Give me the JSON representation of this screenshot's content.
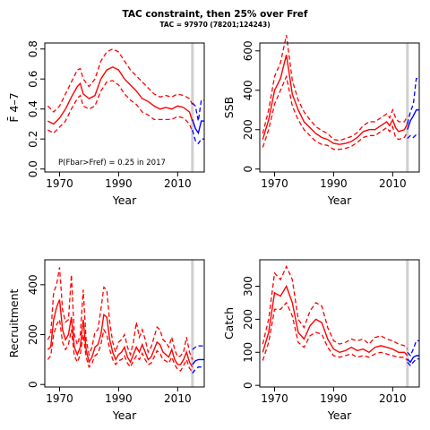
{
  "figure": {
    "title": "TAC constraint, then 25% over Fref",
    "subtitle": "TAC = 97970 (78201;124243)"
  },
  "colors": {
    "historic": "#ff0000",
    "projection": "#0000ff",
    "marker_line": "#d0d0d0",
    "axis": "#000000"
  },
  "chart_data": [
    {
      "type": "line",
      "ylabel": "F̄ 4–7",
      "xlabel": "Year",
      "annotation": "P(Fbar>Fref) = 0.25  in 2017",
      "xlim": [
        1965,
        2019
      ],
      "ylim": [
        -0.02,
        0.84
      ],
      "xticks": [
        1970,
        1990,
        2010
      ],
      "yticks": [
        0.0,
        0.2,
        0.4,
        0.6,
        0.8
      ],
      "ytick_labels": [
        "0.0",
        "0.2",
        "0.4",
        "0.6",
        "0.8"
      ],
      "vline_x": 2015,
      "historic": {
        "x": [
          1966,
          1968,
          1970,
          1972,
          1974,
          1976,
          1977,
          1978,
          1980,
          1982,
          1984,
          1986,
          1988,
          1990,
          1992,
          1994,
          1996,
          1998,
          2000,
          2002,
          2004,
          2006,
          2008,
          2010,
          2012,
          2014,
          2015
        ],
        "median": [
          0.32,
          0.3,
          0.34,
          0.4,
          0.48,
          0.55,
          0.57,
          0.5,
          0.47,
          0.49,
          0.6,
          0.66,
          0.68,
          0.66,
          0.6,
          0.56,
          0.52,
          0.47,
          0.45,
          0.42,
          0.4,
          0.41,
          0.4,
          0.42,
          0.41,
          0.38,
          0.32
        ],
        "lower": [
          0.26,
          0.24,
          0.28,
          0.32,
          0.4,
          0.47,
          0.49,
          0.42,
          0.4,
          0.42,
          0.52,
          0.58,
          0.59,
          0.56,
          0.5,
          0.46,
          0.43,
          0.38,
          0.36,
          0.33,
          0.33,
          0.33,
          0.33,
          0.35,
          0.34,
          0.3,
          0.25
        ],
        "upper": [
          0.42,
          0.38,
          0.42,
          0.5,
          0.58,
          0.66,
          0.67,
          0.6,
          0.55,
          0.6,
          0.72,
          0.78,
          0.8,
          0.78,
          0.72,
          0.66,
          0.62,
          0.58,
          0.54,
          0.5,
          0.48,
          0.49,
          0.48,
          0.5,
          0.49,
          0.47,
          0.43
        ]
      },
      "projection": {
        "x": [
          2015,
          2016,
          2017,
          2018,
          2019
        ],
        "median": [
          0.33,
          0.27,
          0.24,
          0.32,
          0.32
        ],
        "lower": [
          0.26,
          0.19,
          0.17,
          0.2,
          0.2
        ],
        "upper": [
          0.44,
          0.42,
          0.32,
          0.46,
          0.46
        ]
      }
    },
    {
      "type": "line",
      "ylabel": "SSB",
      "xlabel": "Year",
      "xlim": [
        1965,
        2019
      ],
      "ylim": [
        -15,
        640
      ],
      "xticks": [
        1970,
        1990,
        2010
      ],
      "yticks": [
        0,
        200,
        400,
        600
      ],
      "ytick_labels": [
        "0",
        "200",
        "400",
        "600"
      ],
      "vline_x": 2015,
      "historic": {
        "x": [
          1966,
          1968,
          1970,
          1972,
          1974,
          1976,
          1978,
          1980,
          1982,
          1984,
          1986,
          1988,
          1990,
          1992,
          1994,
          1996,
          1998,
          2000,
          2002,
          2004,
          2006,
          2008,
          2009,
          2010,
          2011,
          2012,
          2014,
          2015
        ],
        "median": [
          150,
          250,
          400,
          460,
          580,
          380,
          300,
          240,
          210,
          180,
          160,
          150,
          130,
          125,
          130,
          140,
          160,
          190,
          200,
          200,
          220,
          240,
          220,
          250,
          210,
          190,
          200,
          230
        ],
        "lower": [
          110,
          200,
          330,
          400,
          470,
          320,
          250,
          200,
          170,
          140,
          125,
          120,
          100,
          100,
          105,
          115,
          135,
          160,
          170,
          170,
          190,
          210,
          190,
          215,
          160,
          150,
          160,
          190
        ],
        "upper": [
          180,
          300,
          470,
          540,
          680,
          450,
          350,
          290,
          250,
          215,
          195,
          180,
          150,
          145,
          155,
          165,
          185,
          220,
          240,
          240,
          260,
          280,
          260,
          300,
          260,
          240,
          240,
          270
        ]
      },
      "projection": {
        "x": [
          2015,
          2016,
          2017,
          2018,
          2019
        ],
        "median": [
          200,
          245,
          270,
          300,
          300
        ],
        "lower": [
          155,
          170,
          160,
          175,
          175
        ],
        "upper": [
          230,
          290,
          330,
          460,
          460
        ]
      }
    },
    {
      "type": "line",
      "ylabel": "Recruitment",
      "xlabel": "Year",
      "xlim": [
        1965,
        2019
      ],
      "ylim": [
        -10,
        500
      ],
      "xticks": [
        1970,
        1990,
        2010
      ],
      "yticks": [
        0,
        200,
        400
      ],
      "ytick_labels": [
        "0",
        "200",
        "400"
      ],
      "vline_x": 2015,
      "historic": {
        "x": [
          1966,
          1967,
          1968,
          1969,
          1970,
          1971,
          1972,
          1973,
          1974,
          1975,
          1976,
          1977,
          1978,
          1979,
          1980,
          1981,
          1982,
          1983,
          1984,
          1985,
          1986,
          1987,
          1988,
          1989,
          1990,
          1991,
          1992,
          1993,
          1994,
          1995,
          1996,
          1997,
          1998,
          1999,
          2000,
          2001,
          2002,
          2003,
          2004,
          2005,
          2006,
          2007,
          2008,
          2009,
          2010,
          2011,
          2012,
          2013,
          2014,
          2015
        ],
        "median": [
          140,
          150,
          260,
          310,
          340,
          220,
          180,
          200,
          270,
          150,
          120,
          150,
          260,
          140,
          90,
          110,
          150,
          160,
          200,
          280,
          270,
          180,
          130,
          100,
          120,
          130,
          150,
          110,
          90,
          120,
          150,
          130,
          160,
          130,
          100,
          110,
          140,
          170,
          160,
          130,
          120,
          110,
          140,
          100,
          80,
          80,
          100,
          130,
          90,
          70
        ],
        "lower": [
          100,
          115,
          200,
          240,
          260,
          170,
          140,
          160,
          220,
          115,
          90,
          120,
          200,
          110,
          70,
          85,
          115,
          125,
          160,
          220,
          200,
          140,
          100,
          80,
          95,
          100,
          115,
          85,
          70,
          95,
          115,
          100,
          125,
          100,
          80,
          85,
          110,
          135,
          125,
          100,
          95,
          85,
          110,
          80,
          60,
          55,
          75,
          100,
          65,
          50
        ],
        "upper": [
          180,
          200,
          370,
          400,
          470,
          300,
          250,
          260,
          440,
          200,
          160,
          200,
          380,
          180,
          120,
          150,
          210,
          220,
          300,
          390,
          380,
          250,
          170,
          130,
          170,
          180,
          200,
          150,
          120,
          170,
          250,
          190,
          220,
          180,
          130,
          150,
          190,
          230,
          220,
          180,
          170,
          150,
          190,
          140,
          110,
          115,
          130,
          190,
          130,
          100
        ]
      },
      "projection": {
        "x": [
          2015,
          2016,
          2017,
          2018,
          2019
        ],
        "median": [
          80,
          95,
          100,
          100,
          100
        ],
        "lower": [
          45,
          60,
          70,
          70,
          70
        ],
        "upper": [
          140,
          150,
          155,
          155,
          155
        ]
      }
    },
    {
      "type": "line",
      "ylabel": "Catch",
      "xlabel": "Year",
      "xlim": [
        1965,
        2019
      ],
      "ylim": [
        -5,
        380
      ],
      "xticks": [
        1970,
        1990,
        2010
      ],
      "yticks": [
        0,
        100,
        200,
        300
      ],
      "ytick_labels": [
        "0",
        "100",
        "200",
        "300"
      ],
      "vline_x": 2015,
      "historic": {
        "x": [
          1966,
          1968,
          1970,
          1972,
          1974,
          1976,
          1978,
          1980,
          1982,
          1984,
          1986,
          1988,
          1990,
          1992,
          1994,
          1996,
          1998,
          2000,
          2002,
          2004,
          2006,
          2008,
          2010,
          2012,
          2014,
          2015
        ],
        "median": [
          100,
          160,
          280,
          270,
          300,
          250,
          160,
          140,
          180,
          200,
          190,
          140,
          110,
          100,
          105,
          115,
          105,
          110,
          100,
          115,
          120,
          115,
          110,
          100,
          100,
          90
        ],
        "lower": [
          75,
          130,
          230,
          230,
          250,
          210,
          130,
          115,
          150,
          160,
          155,
          115,
          90,
          85,
          90,
          95,
          85,
          90,
          85,
          95,
          100,
          95,
          90,
          85,
          85,
          75
        ],
        "upper": [
          125,
          200,
          340,
          320,
          360,
          320,
          200,
          175,
          225,
          250,
          240,
          175,
          135,
          125,
          130,
          140,
          135,
          140,
          125,
          145,
          150,
          140,
          135,
          125,
          120,
          110
        ]
      },
      "projection": {
        "x": [
          2015,
          2016,
          2017,
          2018,
          2019
        ],
        "median": [
          80,
          70,
          85,
          90,
          90
        ],
        "lower": [
          70,
          60,
          70,
          80,
          80
        ],
        "upper": [
          100,
          90,
          110,
          135,
          135
        ]
      }
    }
  ]
}
